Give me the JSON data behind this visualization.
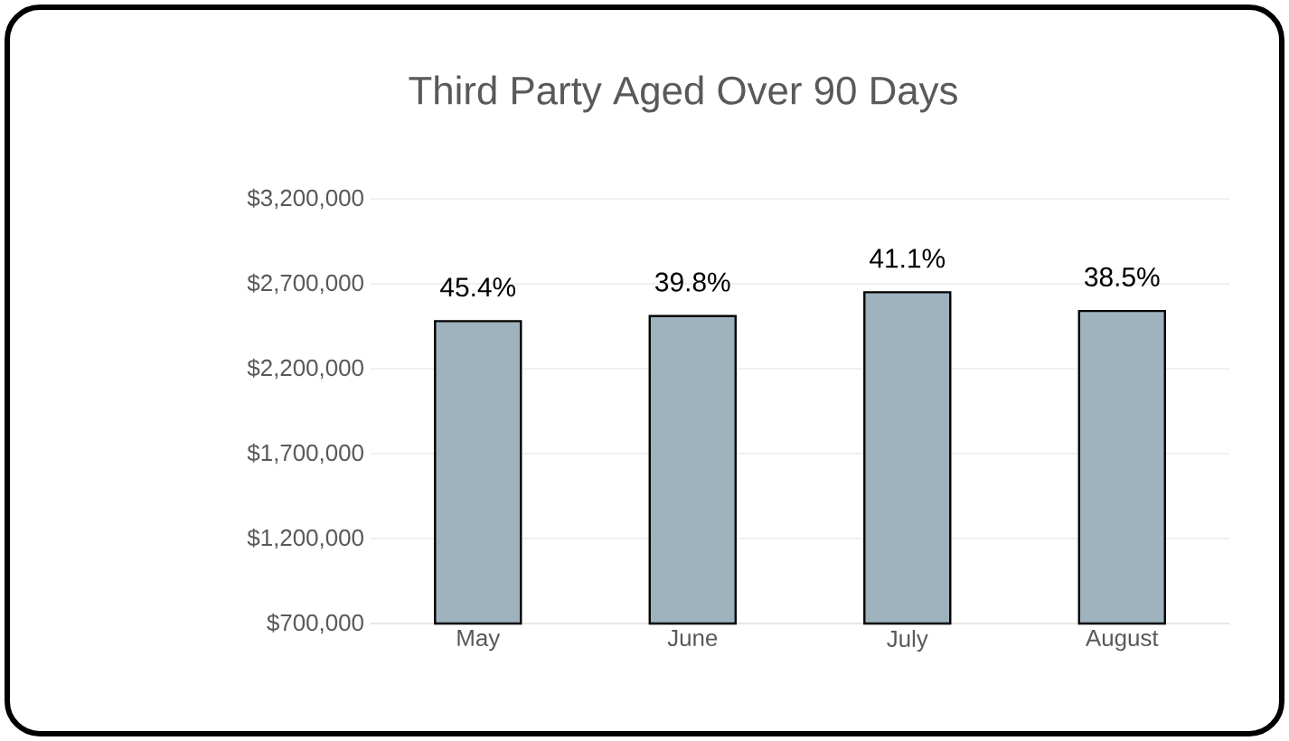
{
  "chart_data": {
    "type": "bar",
    "title": "Third Party Aged Over 90 Days",
    "categories": [
      "May",
      "June",
      "July",
      "August"
    ],
    "values": [
      2480000,
      2510000,
      2650000,
      2540000
    ],
    "annotations": [
      {
        "text": "45.4%",
        "x": "May",
        "y": 2480000
      },
      {
        "text": "39.8%",
        "x": "June",
        "y": 2510000
      },
      {
        "text": "41.1%",
        "x": "July",
        "y": 2650000
      },
      {
        "text": "38.5%",
        "x": "August",
        "y": 2540000
      }
    ],
    "color": "#9eb3bd",
    "ylim": [
      700000,
      3200000
    ],
    "yticks": [
      {
        "value": 700000,
        "label": "$700,000"
      },
      {
        "value": 1200000,
        "label": "$1,200,000"
      },
      {
        "value": 1700000,
        "label": "$1,700,000"
      },
      {
        "value": 2200000,
        "label": "$2,200,000"
      },
      {
        "value": 2700000,
        "label": "$2,700,000"
      },
      {
        "value": 3200000,
        "label": "$3,200,000"
      }
    ],
    "grid": "y"
  }
}
